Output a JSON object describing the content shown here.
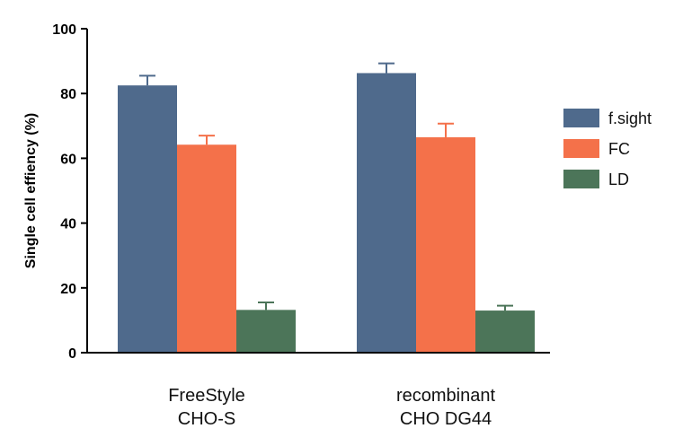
{
  "chart_data": {
    "type": "bar",
    "title": "",
    "xlabel": "",
    "ylabel": "Single cell effiency (%)",
    "ylim": [
      0,
      100
    ],
    "yticks": [
      "0",
      "20",
      "40",
      "60",
      "80",
      "100"
    ],
    "grid": false,
    "legend_position": "right",
    "categories": [
      [
        "FreeStyle",
        "CHO-S"
      ],
      [
        "recombinant",
        "CHO DG44"
      ]
    ],
    "series": [
      {
        "name": "f.sight",
        "color": "#4f6a8c",
        "values": [
          82.5,
          86.3
        ],
        "errors": [
          3.0,
          3.0
        ]
      },
      {
        "name": "FC",
        "color": "#f4714a",
        "values": [
          64.2,
          66.5
        ],
        "errors": [
          2.8,
          4.2
        ]
      },
      {
        "name": "LD",
        "color": "#4c7559",
        "values": [
          13.2,
          13.0
        ],
        "errors": [
          2.3,
          1.5
        ]
      }
    ]
  }
}
